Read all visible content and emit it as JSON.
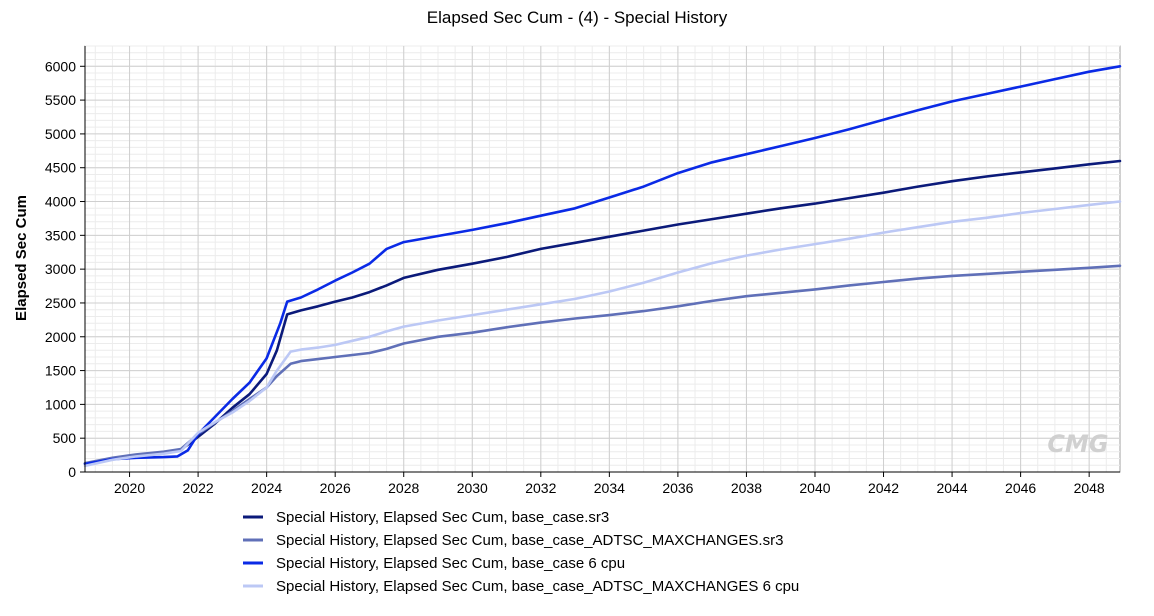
{
  "chart_data": {
    "type": "line",
    "title": "Elapsed Sec Cum - (4) - Special History",
    "xlabel": "",
    "ylabel": "Elapsed Sec Cum",
    "xlim": [
      2018.7,
      2048.9
    ],
    "ylim": [
      0,
      6300
    ],
    "x_ticks": [
      2020,
      2022,
      2024,
      2026,
      2028,
      2030,
      2032,
      2034,
      2036,
      2038,
      2040,
      2042,
      2044,
      2046,
      2048
    ],
    "y_ticks": [
      0,
      500,
      1000,
      1500,
      2000,
      2500,
      3000,
      3500,
      4000,
      4500,
      5000,
      5500,
      6000
    ],
    "grid": true,
    "legend_position": "bottom",
    "series": [
      {
        "name": "Special History, Elapsed Sec Cum, base_case.sr3",
        "color": "#0b1a7a",
        "x": [
          2018.7,
          2019.5,
          2020.2,
          2021.0,
          2021.5,
          2022.0,
          2022.5,
          2023.0,
          2023.5,
          2024.0,
          2024.3,
          2024.6,
          2025.0,
          2025.5,
          2026.0,
          2026.5,
          2027.0,
          2027.5,
          2028.0,
          2029.0,
          2030.0,
          2031.0,
          2032.0,
          2033.0,
          2034.0,
          2035.0,
          2036.0,
          2037.0,
          2038.0,
          2039.0,
          2040.0,
          2041.0,
          2042.0,
          2043.0,
          2044.0,
          2045.0,
          2046.0,
          2047.0,
          2048.0,
          2048.9
        ],
        "y": [
          120,
          200,
          250,
          290,
          330,
          520,
          720,
          950,
          1150,
          1450,
          1800,
          2330,
          2390,
          2450,
          2520,
          2580,
          2660,
          2760,
          2870,
          2990,
          3080,
          3180,
          3300,
          3390,
          3480,
          3570,
          3660,
          3740,
          3820,
          3900,
          3970,
          4050,
          4130,
          4220,
          4300,
          4370,
          4430,
          4490,
          4550,
          4600
        ]
      },
      {
        "name": "Special History, Elapsed Sec Cum, base_case_ADTSC_MAXCHANGES.sr3",
        "color": "#6070b8",
        "x": [
          2018.7,
          2019.5,
          2020.2,
          2021.0,
          2021.5,
          2022.0,
          2022.5,
          2023.0,
          2023.5,
          2024.0,
          2024.3,
          2024.7,
          2025.0,
          2025.5,
          2026.0,
          2026.5,
          2027.0,
          2027.5,
          2028.0,
          2029.0,
          2030.0,
          2031.0,
          2032.0,
          2033.0,
          2034.0,
          2035.0,
          2036.0,
          2037.0,
          2038.0,
          2039.0,
          2040.0,
          2041.0,
          2042.0,
          2043.0,
          2044.0,
          2045.0,
          2046.0,
          2047.0,
          2048.0,
          2048.9
        ],
        "y": [
          130,
          210,
          260,
          300,
          340,
          560,
          730,
          900,
          1080,
          1250,
          1420,
          1600,
          1640,
          1670,
          1700,
          1730,
          1760,
          1820,
          1900,
          2000,
          2060,
          2140,
          2210,
          2270,
          2320,
          2380,
          2450,
          2530,
          2600,
          2650,
          2700,
          2760,
          2810,
          2860,
          2900,
          2930,
          2960,
          2990,
          3020,
          3050
        ]
      },
      {
        "name": "Special History, Elapsed Sec Cum, base_case 6 cpu",
        "color": "#0a2ae6",
        "x": [
          2018.7,
          2019.5,
          2020.2,
          2021.0,
          2021.4,
          2021.7,
          2022.0,
          2022.5,
          2023.0,
          2023.5,
          2024.0,
          2024.4,
          2024.6,
          2025.0,
          2025.5,
          2026.0,
          2026.5,
          2027.0,
          2027.5,
          2028.0,
          2029.0,
          2030.0,
          2031.0,
          2032.0,
          2033.0,
          2034.0,
          2035.0,
          2036.0,
          2037.0,
          2038.0,
          2039.0,
          2040.0,
          2041.0,
          2042.0,
          2043.0,
          2044.0,
          2045.0,
          2046.0,
          2047.0,
          2048.0,
          2048.9
        ],
        "y": [
          120,
          190,
          210,
          220,
          230,
          320,
          560,
          820,
          1080,
          1320,
          1680,
          2200,
          2520,
          2580,
          2700,
          2830,
          2950,
          3080,
          3300,
          3400,
          3490,
          3580,
          3680,
          3790,
          3900,
          4060,
          4220,
          4420,
          4580,
          4700,
          4820,
          4940,
          5070,
          5210,
          5350,
          5480,
          5590,
          5700,
          5810,
          5920,
          6000
        ]
      },
      {
        "name": "Special History, Elapsed Sec Cum, base_case_ADTSC_MAXCHANGES 6 cpu",
        "color": "#bcc8f5",
        "x": [
          2018.7,
          2019.5,
          2020.2,
          2021.0,
          2021.5,
          2022.0,
          2022.5,
          2023.0,
          2023.5,
          2024.0,
          2024.3,
          2024.7,
          2025.0,
          2025.5,
          2026.0,
          2026.5,
          2027.0,
          2027.5,
          2028.0,
          2029.0,
          2030.0,
          2031.0,
          2032.0,
          2033.0,
          2034.0,
          2035.0,
          2036.0,
          2037.0,
          2038.0,
          2039.0,
          2040.0,
          2041.0,
          2042.0,
          2043.0,
          2044.0,
          2045.0,
          2046.0,
          2047.0,
          2048.0,
          2048.9
        ],
        "y": [
          90,
          180,
          230,
          270,
          310,
          580,
          740,
          880,
          1050,
          1250,
          1500,
          1780,
          1810,
          1840,
          1880,
          1940,
          2000,
          2080,
          2150,
          2240,
          2320,
          2400,
          2480,
          2560,
          2670,
          2800,
          2950,
          3090,
          3200,
          3290,
          3370,
          3450,
          3540,
          3620,
          3700,
          3760,
          3830,
          3890,
          3950,
          4000
        ]
      }
    ]
  },
  "watermark": {
    "text": "CMG",
    "color": "#d0d0d0"
  }
}
